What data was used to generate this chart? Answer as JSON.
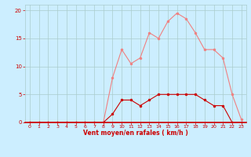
{
  "x": [
    0,
    1,
    2,
    3,
    4,
    5,
    6,
    7,
    8,
    9,
    10,
    11,
    12,
    13,
    14,
    15,
    16,
    17,
    18,
    19,
    20,
    21,
    22,
    23
  ],
  "y_rafales": [
    0,
    0,
    0,
    0,
    0,
    0,
    0,
    0,
    0,
    8,
    13,
    10.5,
    11.5,
    16,
    15,
    18,
    19.5,
    18.5,
    16,
    13,
    13,
    11.5,
    5,
    0.5
  ],
  "y_moyen": [
    0,
    0,
    0,
    0,
    0,
    0,
    0,
    0,
    0,
    1.5,
    4,
    4,
    3,
    4,
    5,
    5,
    5,
    5,
    5,
    4,
    3,
    3,
    0,
    0
  ],
  "xlabel": "Vent moyen/en rafales ( km/h )",
  "ylim": [
    0,
    21
  ],
  "xlim": [
    -0.5,
    23.5
  ],
  "yticks": [
    0,
    5,
    10,
    15,
    20
  ],
  "xticks": [
    0,
    1,
    2,
    3,
    4,
    5,
    6,
    7,
    8,
    9,
    10,
    11,
    12,
    13,
    14,
    15,
    16,
    17,
    18,
    19,
    20,
    21,
    22,
    23
  ],
  "bg_color": "#cceeff",
  "line_color_rafales": "#f08080",
  "line_color_moyen": "#cc0000",
  "grid_color": "#aacccc",
  "xlabel_color": "#cc0000",
  "tick_color": "#cc0000",
  "marker_size": 2,
  "line_width": 0.8
}
